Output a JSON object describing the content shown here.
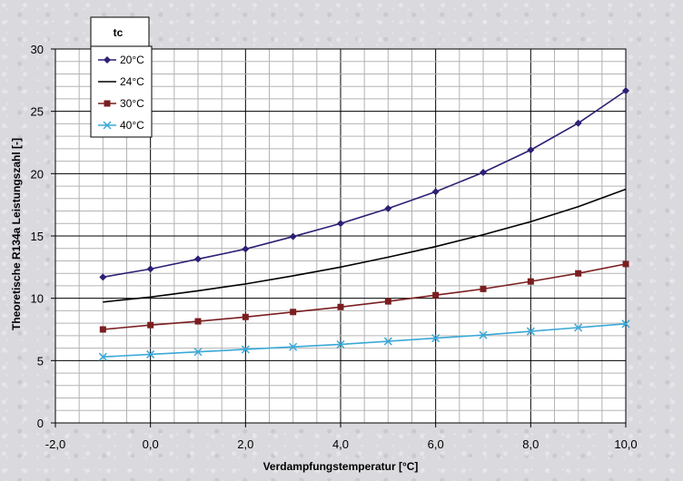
{
  "chart_data": {
    "type": "line",
    "xlabel": "Verdampfungstemperatur [°C]",
    "ylabel": "Theoretische R134a Leistungszahl [-]",
    "xlim": [
      -2,
      10
    ],
    "ylim": [
      0,
      30
    ],
    "x_ticks": [
      "-2,0",
      "0,0",
      "2,0",
      "4,0",
      "6,0",
      "8,0",
      "10,0"
    ],
    "y_ticks": [
      "0",
      "5",
      "10",
      "15",
      "20",
      "25",
      "30"
    ],
    "grid": true,
    "legend": {
      "title": "tc",
      "position": "top-left"
    },
    "x": [
      -1,
      0,
      1,
      2,
      3,
      4,
      5,
      6,
      7,
      8,
      9,
      10
    ],
    "series": [
      {
        "name": "20°C",
        "color": "#2e1f74",
        "marker": "diamond",
        "values": [
          11.7,
          12.35,
          13.15,
          13.95,
          14.95,
          16.0,
          17.2,
          18.55,
          20.1,
          21.9,
          24.05,
          26.65
        ]
      },
      {
        "name": "24°C",
        "color": "#000000",
        "marker": "none",
        "values": [
          9.7,
          10.1,
          10.6,
          11.15,
          11.8,
          12.5,
          13.3,
          14.15,
          15.1,
          16.15,
          17.35,
          18.75
        ]
      },
      {
        "name": "30°C",
        "color": "#7a1e20",
        "marker": "square",
        "values": [
          7.5,
          7.85,
          8.15,
          8.5,
          8.9,
          9.3,
          9.75,
          10.25,
          10.75,
          11.35,
          12.0,
          12.75
        ]
      },
      {
        "name": "40°C",
        "color": "#3aa8d8",
        "marker": "x",
        "values": [
          5.3,
          5.5,
          5.7,
          5.9,
          6.1,
          6.3,
          6.55,
          6.8,
          7.05,
          7.35,
          7.65,
          7.95
        ]
      }
    ]
  }
}
